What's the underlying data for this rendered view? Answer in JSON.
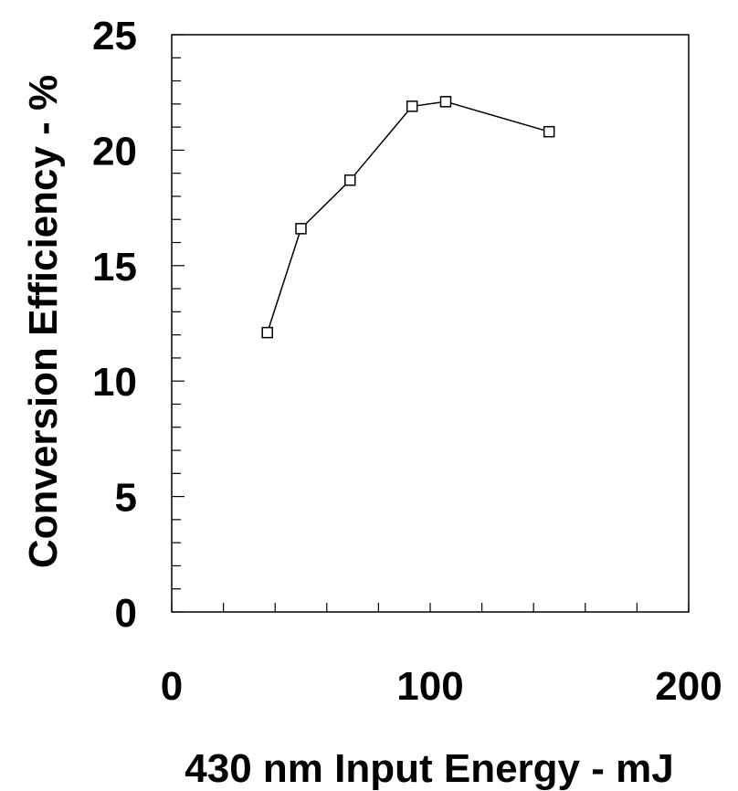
{
  "chart_data": {
    "type": "line",
    "title": "",
    "xlabel": "430 nm Input Energy - mJ",
    "ylabel": "Conversion Efficiency - %",
    "xlim": [
      0,
      200
    ],
    "ylim": [
      0,
      25
    ],
    "x_major_ticks": [
      0,
      100,
      200
    ],
    "x_minor_step": 20,
    "y_major_ticks": [
      0,
      5,
      10,
      15,
      20,
      25
    ],
    "y_minor_step": 1,
    "grid": false,
    "legend": "none",
    "marker": "open-square",
    "color": "#000000",
    "series": [
      {
        "x": [
          37,
          50,
          69,
          93,
          106,
          146
        ],
        "y": [
          12.1,
          16.6,
          18.7,
          21.9,
          22.1,
          20.8
        ]
      }
    ]
  }
}
